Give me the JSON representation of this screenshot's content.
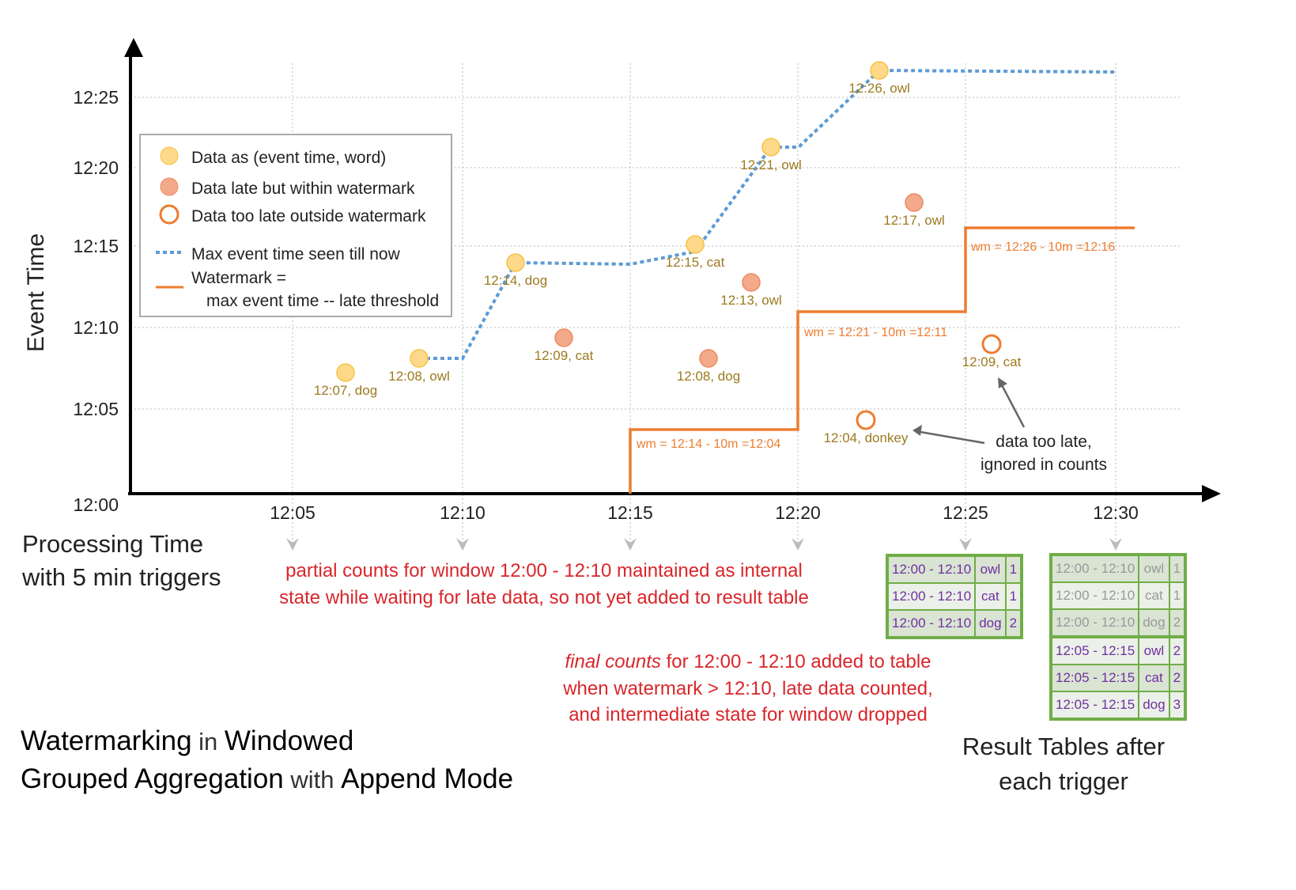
{
  "axes": {
    "y_label": "Event Time",
    "x_label_line1": "Processing Time",
    "x_label_line2": "with 5 min triggers",
    "y_ticks": [
      "12:00",
      "12:05",
      "12:10",
      "12:15",
      "12:20",
      "12:25"
    ],
    "x_ticks": [
      "12:05",
      "12:10",
      "12:15",
      "12:20",
      "12:25",
      "12:30"
    ]
  },
  "legend": {
    "on_time": "Data as (event time, word)",
    "late_within": "Data late but within watermark",
    "too_late": "Data too late outside watermark",
    "max_event": "Max event time seen till now",
    "watermark_line1": "Watermark =",
    "watermark_line2": "max event time -- late threshold"
  },
  "colors": {
    "on_time_fill": "#ffd98a",
    "late_fill": "#f4a98a",
    "too_late_stroke": "#ed7d31",
    "max_event_line": "#5b9bd5",
    "watermark_line": "#ed7d31",
    "point_label": "#9c7a1e",
    "annotation_red": "#d9262b",
    "table_border": "#70ad47",
    "table_text": "#7030a0"
  },
  "points": [
    {
      "label": "12:07, dog",
      "type": "on_time"
    },
    {
      "label": "12:08, owl",
      "type": "on_time"
    },
    {
      "label": "12:14, dog",
      "type": "on_time"
    },
    {
      "label": "12:09, cat",
      "type": "late_within"
    },
    {
      "label": "12:15, cat",
      "type": "on_time"
    },
    {
      "label": "12:08, dog",
      "type": "late_within"
    },
    {
      "label": "12:13, owl",
      "type": "late_within"
    },
    {
      "label": "12:21, owl",
      "type": "on_time"
    },
    {
      "label": "12:04, donkey",
      "type": "too_late"
    },
    {
      "label": "12:26, owl",
      "type": "on_time"
    },
    {
      "label": "12:17, owl",
      "type": "late_within"
    },
    {
      "label": "12:09, cat",
      "type": "too_late"
    }
  ],
  "watermark_labels": [
    "wm = 12:14 - 10m =12:04",
    "wm = 12:21 - 10m =12:11",
    "wm = 12:26 - 10m =12:16"
  ],
  "annotations": {
    "too_late_line1": "data too late,",
    "too_late_line2": "ignored in counts",
    "partial_line1": "partial counts for window 12:00 - 12:10 maintained as internal",
    "partial_line2": "state while waiting for late data, so not yet added  to result table",
    "final_italic": "final counts",
    "final_line1_rest": " for 12:00 - 12:10 added to table",
    "final_line2": "when watermark > 12:10, late data counted,",
    "final_line3": "and intermediate state for window dropped"
  },
  "title": {
    "b1": "Watermarking",
    "n1": " in ",
    "b2": "Windowed",
    "b3": "Grouped Aggregation",
    "n2": " with ",
    "b4": "Append Mode"
  },
  "result_tables_caption_line1": "Result Tables after",
  "result_tables_caption_line2": "each trigger",
  "result_tables": [
    {
      "trigger": "12:25",
      "rows": [
        [
          "12:00 - 12:10",
          "owl",
          "1"
        ],
        [
          "12:00 - 12:10",
          "cat",
          "1"
        ],
        [
          "12:00 - 12:10",
          "dog",
          "2"
        ]
      ]
    },
    {
      "trigger": "12:30",
      "rows": [
        [
          "12:00 - 12:10",
          "owl",
          "1"
        ],
        [
          "12:00 - 12:10",
          "cat",
          "1"
        ],
        [
          "12:00 - 12:10",
          "dog",
          "2"
        ],
        [
          "12:05 - 12:15",
          "owl",
          "2"
        ],
        [
          "12:05 - 12:15",
          "cat",
          "2"
        ],
        [
          "12:05 - 12:15",
          "dog",
          "3"
        ]
      ]
    }
  ]
}
